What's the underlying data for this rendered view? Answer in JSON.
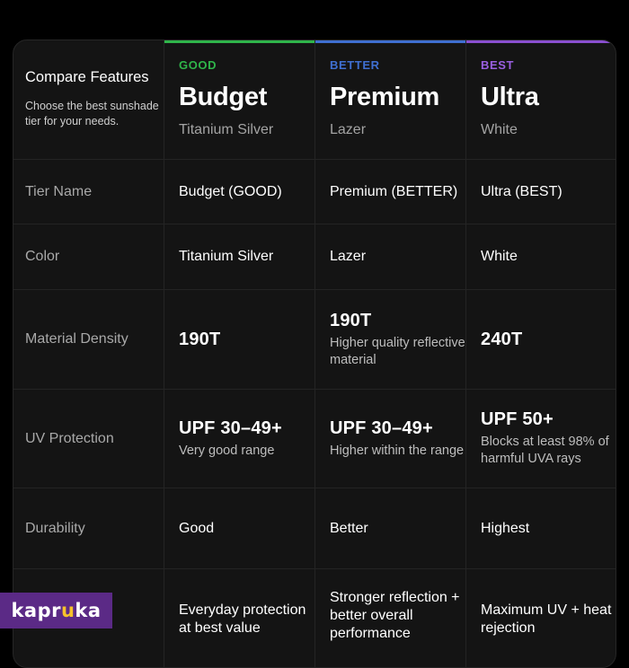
{
  "intro": {
    "title": "Compare Features",
    "subtitle": "Choose the best sunshade tier for your needs."
  },
  "tiers": [
    {
      "tag": "GOOD",
      "name": "Budget",
      "color_name": "Titanium Silver",
      "accent": "#2fb54a"
    },
    {
      "tag": "BETTER",
      "name": "Premium",
      "color_name": "Lazer",
      "accent": "#3f6fd1"
    },
    {
      "tag": "BEST",
      "name": "Ultra",
      "color_name": "White",
      "accent": "#8a4fd0"
    }
  ],
  "rows": {
    "tier_name": {
      "label": "Tier Name",
      "values": [
        "Budget (GOOD)",
        "Premium (BETTER)",
        "Ultra (BEST)"
      ]
    },
    "color": {
      "label": "Color",
      "values": [
        "Titanium Silver",
        "Lazer",
        "White"
      ]
    },
    "density": {
      "label": "Material Density",
      "values": [
        "190T",
        "190T",
        "240T"
      ],
      "notes": [
        "",
        "Higher quality reflective material",
        ""
      ]
    },
    "uv": {
      "label": "UV Protection",
      "values": [
        "UPF 30–49+",
        "UPF 30–49+",
        "UPF 50+"
      ],
      "notes": [
        "Very good range",
        "Higher within the range",
        "Blocks at least 98% of harmful UVA rays"
      ]
    },
    "durability": {
      "label": "Durability",
      "values": [
        "Good",
        "Better",
        "Highest"
      ]
    },
    "summary": {
      "values": [
        "Everyday protection at best value",
        "Stronger reflection + better overall performance",
        "Maximum UV + heat rejection"
      ]
    }
  },
  "logo": {
    "prefix": "kapr",
    "dot": "u",
    "suffix": "ka"
  }
}
